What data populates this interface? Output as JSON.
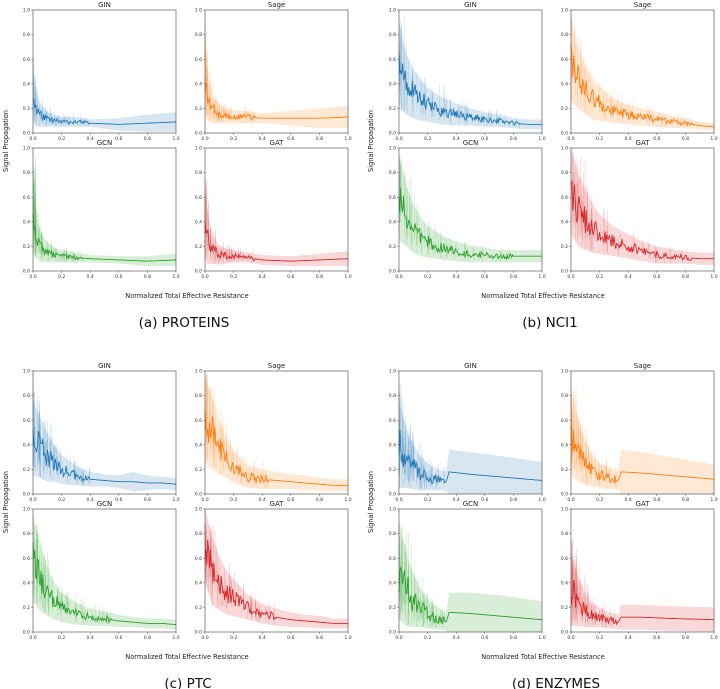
{
  "figure": {
    "panels": [
      {
        "caption": "(a) PROTEINS",
        "xlabel": "Normalized Total Effective Resistance",
        "ylabel": "Signal Propagation"
      },
      {
        "caption": "(b) NCI1",
        "xlabel": "Normalized Total Effective Resistance",
        "ylabel": "Signal Propagation"
      },
      {
        "caption": "(c) PTC",
        "xlabel": "Normalized Total Effective Resistance",
        "ylabel": "Signal Propagation"
      },
      {
        "caption": "(d) ENZYMES",
        "xlabel": "Normalized Total Effective Resistance",
        "ylabel": "Signal Propagation"
      }
    ],
    "colors": {
      "GIN": "#1f77b4",
      "Sage": "#ff7f0e",
      "GCN": "#2ca02c",
      "GAT": "#d62728"
    }
  },
  "chart_data": [
    {
      "type": "line",
      "dataset": "PROTEINS",
      "xlim": [
        0,
        1
      ],
      "ylim": [
        0,
        1
      ],
      "xticks": [
        "0.0",
        "0.2",
        "0.4",
        "0.6",
        "0.8",
        "1.0"
      ],
      "yticks": [
        "0.0",
        "0.2",
        "0.4",
        "0.6",
        "0.8",
        "1.0"
      ],
      "subplots": [
        {
          "title": "GIN",
          "color": "#1f77b4",
          "x": [
            0,
            0.02,
            0.05,
            0.1,
            0.15,
            0.2,
            0.3,
            0.4,
            0.6,
            0.8,
            1.0
          ],
          "y": [
            0.3,
            0.2,
            0.15,
            0.11,
            0.1,
            0.09,
            0.09,
            0.08,
            0.07,
            0.08,
            0.09
          ],
          "band": [
            0.2,
            0.15,
            0.1,
            0.06,
            0.05,
            0.04,
            0.04,
            0.03,
            0.05,
            0.07,
            0.08
          ],
          "max_y": 0.62,
          "spike_until": 0.4
        },
        {
          "title": "Sage",
          "color": "#ff7f0e",
          "x": [
            0,
            0.02,
            0.05,
            0.1,
            0.15,
            0.2,
            0.3,
            0.4,
            0.6,
            0.8,
            1.0
          ],
          "y": [
            0.45,
            0.3,
            0.2,
            0.15,
            0.14,
            0.13,
            0.13,
            0.12,
            0.12,
            0.12,
            0.13
          ],
          "band": [
            0.3,
            0.2,
            0.12,
            0.07,
            0.06,
            0.05,
            0.05,
            0.04,
            0.06,
            0.08,
            0.09
          ],
          "max_y": 0.88,
          "spike_until": 0.35
        },
        {
          "title": "GCN",
          "color": "#2ca02c",
          "x": [
            0,
            0.02,
            0.05,
            0.1,
            0.15,
            0.2,
            0.3,
            0.4,
            0.6,
            0.8,
            1.0
          ],
          "y": [
            0.45,
            0.3,
            0.2,
            0.15,
            0.13,
            0.12,
            0.11,
            0.1,
            0.09,
            0.08,
            0.09
          ],
          "band": [
            0.3,
            0.2,
            0.12,
            0.08,
            0.06,
            0.05,
            0.04,
            0.03,
            0.03,
            0.04,
            0.05
          ],
          "max_y": 0.93,
          "spike_until": 0.35
        },
        {
          "title": "GAT",
          "color": "#d62728",
          "x": [
            0,
            0.02,
            0.05,
            0.1,
            0.15,
            0.2,
            0.3,
            0.4,
            0.6,
            0.8,
            1.0
          ],
          "y": [
            0.4,
            0.25,
            0.18,
            0.13,
            0.12,
            0.12,
            0.11,
            0.09,
            0.08,
            0.09,
            0.1
          ],
          "band": [
            0.3,
            0.2,
            0.12,
            0.08,
            0.06,
            0.05,
            0.04,
            0.04,
            0.04,
            0.05,
            0.06
          ],
          "max_y": 0.8,
          "spike_until": 0.35
        }
      ]
    },
    {
      "type": "line",
      "dataset": "NCI1",
      "xlim": [
        0,
        1
      ],
      "ylim": [
        0,
        1
      ],
      "xticks": [
        "0.0",
        "0.2",
        "0.4",
        "0.6",
        "0.8",
        "1.0"
      ],
      "yticks": [
        "0.0",
        "0.2",
        "0.4",
        "0.6",
        "0.8",
        "1.0"
      ],
      "subplots": [
        {
          "title": "GIN",
          "color": "#1f77b4",
          "x": [
            0,
            0.05,
            0.1,
            0.15,
            0.2,
            0.3,
            0.4,
            0.5,
            0.6,
            0.7,
            0.8,
            0.9,
            1.0
          ],
          "y": [
            0.55,
            0.4,
            0.32,
            0.27,
            0.23,
            0.18,
            0.15,
            0.13,
            0.11,
            0.1,
            0.08,
            0.07,
            0.07
          ],
          "band": [
            0.35,
            0.25,
            0.2,
            0.17,
            0.14,
            0.11,
            0.09,
            0.07,
            0.06,
            0.05,
            0.04,
            0.04,
            0.04
          ],
          "max_y": 1.0,
          "spike_until": 0.85
        },
        {
          "title": "Sage",
          "color": "#ff7f0e",
          "x": [
            0,
            0.05,
            0.1,
            0.15,
            0.2,
            0.3,
            0.4,
            0.5,
            0.6,
            0.7,
            0.8,
            0.9,
            1.0
          ],
          "y": [
            0.6,
            0.45,
            0.35,
            0.28,
            0.24,
            0.18,
            0.15,
            0.13,
            0.11,
            0.09,
            0.08,
            0.06,
            0.05
          ],
          "band": [
            0.35,
            0.25,
            0.2,
            0.17,
            0.14,
            0.1,
            0.08,
            0.07,
            0.06,
            0.05,
            0.04,
            0.03,
            0.03
          ],
          "max_y": 0.95,
          "spike_until": 0.85
        },
        {
          "title": "GCN",
          "color": "#2ca02c",
          "x": [
            0,
            0.05,
            0.1,
            0.15,
            0.2,
            0.3,
            0.4,
            0.5,
            0.6,
            0.7,
            0.8,
            0.9,
            1.0
          ],
          "y": [
            0.6,
            0.45,
            0.35,
            0.28,
            0.24,
            0.19,
            0.16,
            0.14,
            0.13,
            0.12,
            0.12,
            0.12,
            0.12
          ],
          "band": [
            0.35,
            0.25,
            0.2,
            0.16,
            0.13,
            0.1,
            0.08,
            0.07,
            0.06,
            0.05,
            0.05,
            0.05,
            0.05
          ],
          "max_y": 0.95,
          "spike_until": 0.8
        },
        {
          "title": "GAT",
          "color": "#d62728",
          "x": [
            0,
            0.05,
            0.1,
            0.15,
            0.2,
            0.3,
            0.4,
            0.5,
            0.6,
            0.7,
            0.8,
            0.9,
            1.0
          ],
          "y": [
            0.65,
            0.5,
            0.42,
            0.35,
            0.3,
            0.24,
            0.2,
            0.16,
            0.13,
            0.12,
            0.11,
            0.1,
            0.1
          ],
          "band": [
            0.35,
            0.3,
            0.25,
            0.2,
            0.16,
            0.12,
            0.1,
            0.08,
            0.07,
            0.06,
            0.05,
            0.05,
            0.05
          ],
          "max_y": 1.0,
          "spike_until": 0.85
        }
      ]
    },
    {
      "type": "line",
      "dataset": "PTC",
      "xlim": [
        0,
        1
      ],
      "ylim": [
        0,
        1
      ],
      "xticks": [
        "0.0",
        "0.2",
        "0.4",
        "0.6",
        "0.8",
        "1.0"
      ],
      "yticks": [
        "0.0",
        "0.2",
        "0.4",
        "0.6",
        "0.8",
        "1.0"
      ],
      "subplots": [
        {
          "title": "GIN",
          "color": "#1f77b4",
          "x": [
            0,
            0.05,
            0.1,
            0.15,
            0.2,
            0.3,
            0.4,
            0.5,
            0.6,
            0.7,
            0.8,
            0.9,
            1.0
          ],
          "y": [
            0.45,
            0.38,
            0.3,
            0.25,
            0.2,
            0.15,
            0.12,
            0.11,
            0.1,
            0.1,
            0.09,
            0.09,
            0.08
          ],
          "band": [
            0.3,
            0.25,
            0.2,
            0.15,
            0.12,
            0.08,
            0.06,
            0.05,
            0.05,
            0.08,
            0.06,
            0.05,
            0.05
          ],
          "max_y": 1.0,
          "spike_until": 0.4
        },
        {
          "title": "Sage",
          "color": "#ff7f0e",
          "x": [
            0,
            0.05,
            0.1,
            0.15,
            0.2,
            0.3,
            0.4,
            0.5,
            0.6,
            0.7,
            0.8,
            0.9,
            1.0
          ],
          "y": [
            0.6,
            0.5,
            0.38,
            0.3,
            0.22,
            0.14,
            0.12,
            0.11,
            0.1,
            0.09,
            0.08,
            0.07,
            0.07
          ],
          "band": [
            0.35,
            0.3,
            0.22,
            0.17,
            0.13,
            0.09,
            0.08,
            0.07,
            0.06,
            0.06,
            0.05,
            0.05,
            0.05
          ],
          "max_y": 1.0,
          "spike_until": 0.45
        },
        {
          "title": "GCN",
          "color": "#2ca02c",
          "x": [
            0,
            0.05,
            0.1,
            0.15,
            0.2,
            0.3,
            0.4,
            0.5,
            0.6,
            0.7,
            0.8,
            0.9,
            1.0
          ],
          "y": [
            0.6,
            0.45,
            0.33,
            0.25,
            0.2,
            0.15,
            0.12,
            0.11,
            0.09,
            0.08,
            0.07,
            0.07,
            0.06
          ],
          "band": [
            0.35,
            0.28,
            0.2,
            0.15,
            0.12,
            0.09,
            0.07,
            0.06,
            0.05,
            0.04,
            0.04,
            0.04,
            0.04
          ],
          "max_y": 1.0,
          "spike_until": 0.55
        },
        {
          "title": "GAT",
          "color": "#d62728",
          "x": [
            0,
            0.05,
            0.1,
            0.15,
            0.2,
            0.3,
            0.4,
            0.5,
            0.6,
            0.7,
            0.8,
            0.9,
            1.0
          ],
          "y": [
            0.7,
            0.5,
            0.4,
            0.32,
            0.28,
            0.2,
            0.15,
            0.12,
            0.1,
            0.09,
            0.08,
            0.07,
            0.07
          ],
          "band": [
            0.3,
            0.28,
            0.22,
            0.18,
            0.15,
            0.1,
            0.08,
            0.07,
            0.06,
            0.05,
            0.05,
            0.04,
            0.04
          ],
          "max_y": 0.9,
          "spike_until": 0.5
        }
      ]
    },
    {
      "type": "line",
      "dataset": "ENZYMES",
      "xlim": [
        0,
        1
      ],
      "ylim": [
        0,
        1
      ],
      "xticks": [
        "0.0",
        "0.2",
        "0.4",
        "0.6",
        "0.8",
        "1.0"
      ],
      "yticks": [
        "0.0",
        "0.2",
        "0.4",
        "0.6",
        "0.8",
        "1.0"
      ],
      "subplots": [
        {
          "title": "GIN",
          "color": "#1f77b4",
          "x": [
            0,
            0.05,
            0.1,
            0.15,
            0.2,
            0.25,
            0.3,
            0.33,
            0.35,
            0.5,
            0.7,
            1.0
          ],
          "y": [
            0.4,
            0.3,
            0.22,
            0.17,
            0.14,
            0.12,
            0.11,
            0.1,
            0.18,
            0.16,
            0.14,
            0.11
          ],
          "band": [
            0.35,
            0.25,
            0.18,
            0.14,
            0.11,
            0.09,
            0.08,
            0.08,
            0.18,
            0.18,
            0.17,
            0.15
          ],
          "max_y": 1.0,
          "spike_until": 0.32
        },
        {
          "title": "Sage",
          "color": "#ff7f0e",
          "x": [
            0,
            0.05,
            0.1,
            0.15,
            0.2,
            0.25,
            0.3,
            0.33,
            0.35,
            0.5,
            0.7,
            1.0
          ],
          "y": [
            0.5,
            0.35,
            0.25,
            0.19,
            0.15,
            0.13,
            0.12,
            0.11,
            0.18,
            0.17,
            0.15,
            0.12
          ],
          "band": [
            0.35,
            0.25,
            0.18,
            0.13,
            0.1,
            0.09,
            0.08,
            0.08,
            0.18,
            0.17,
            0.15,
            0.12
          ],
          "max_y": 0.9,
          "spike_until": 0.32
        },
        {
          "title": "GCN",
          "color": "#2ca02c",
          "x": [
            0,
            0.05,
            0.1,
            0.15,
            0.2,
            0.25,
            0.3,
            0.33,
            0.35,
            0.5,
            0.7,
            1.0
          ],
          "y": [
            0.5,
            0.35,
            0.26,
            0.2,
            0.15,
            0.12,
            0.1,
            0.08,
            0.16,
            0.15,
            0.13,
            0.1
          ],
          "band": [
            0.4,
            0.3,
            0.22,
            0.16,
            0.12,
            0.1,
            0.08,
            0.07,
            0.16,
            0.17,
            0.17,
            0.15
          ],
          "max_y": 0.95,
          "spike_until": 0.32
        },
        {
          "title": "GAT",
          "color": "#d62728",
          "x": [
            0,
            0.05,
            0.1,
            0.15,
            0.2,
            0.25,
            0.3,
            0.33,
            0.35,
            0.5,
            0.7,
            1.0
          ],
          "y": [
            0.35,
            0.25,
            0.18,
            0.14,
            0.12,
            0.1,
            0.09,
            0.08,
            0.12,
            0.12,
            0.11,
            0.1
          ],
          "band": [
            0.3,
            0.2,
            0.14,
            0.1,
            0.08,
            0.07,
            0.06,
            0.06,
            0.1,
            0.1,
            0.1,
            0.1
          ],
          "max_y": 0.85,
          "spike_until": 0.32
        }
      ]
    }
  ]
}
